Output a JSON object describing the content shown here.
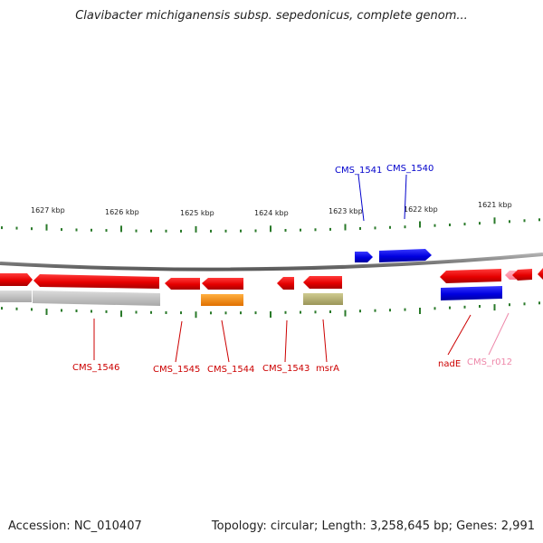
{
  "title": "Clavibacter michiganensis subsp. sepedonicus, complete genom...",
  "accession": "Accession: NC_010407",
  "summary": "Topology: circular; Length: 3,258,645 bp; Genes: 2,991",
  "ruler": {
    "labels": [
      "1627 kbp",
      "1626 kbp",
      "1625 kbp",
      "1624 kbp",
      "1623 kbp",
      "1622 kbp",
      "1621 kbp"
    ]
  },
  "genes": [
    {
      "id": "CMS_1541",
      "color": "#0000cc"
    },
    {
      "id": "CMS_1540",
      "color": "#0000cc"
    },
    {
      "id": "CMS_1546",
      "color": "#cc0000"
    },
    {
      "id": "CMS_1545",
      "color": "#cc0000"
    },
    {
      "id": "CMS_1544",
      "color": "#cc0000"
    },
    {
      "id": "CMS_1543",
      "color": "#cc0000"
    },
    {
      "id": "msrA",
      "color": "#cc0000"
    },
    {
      "id": "nadE",
      "color": "#cc0000"
    },
    {
      "id": "CMS_r012",
      "color": "#ee88aa"
    }
  ],
  "colors": {
    "gene_red": "#ff0000",
    "gene_blue": "#0000ee",
    "gene_pink": "#ff8899",
    "backbone": "#808080",
    "tick": "#2a7a2a",
    "feature_gray": "#c0c0c0",
    "feature_orange": "#ff8800",
    "feature_olive": "#b5b070"
  }
}
